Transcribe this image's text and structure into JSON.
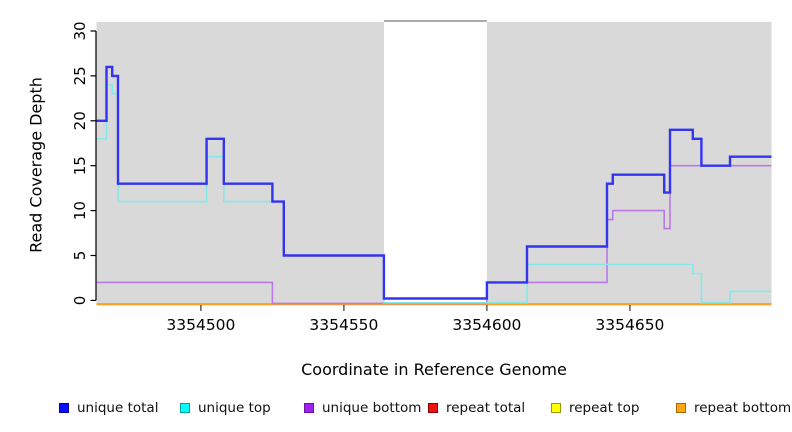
{
  "chart_data": {
    "type": "line",
    "subtype": "step-coverage-plot",
    "title": "",
    "xlabel": "Coordinate in Reference Genome",
    "ylabel": "Read Coverage Depth",
    "xlim": [
      3354463.5,
      3354699.5
    ],
    "ylim": [
      -0.4,
      31.0
    ],
    "xticks": [
      3354500,
      3354550,
      3354600,
      3354650
    ],
    "yticks": [
      0,
      5,
      10,
      15,
      20,
      25,
      30
    ],
    "grid": "off",
    "background": {
      "panel_color": "#d9d9d9",
      "gap_color": "#ffffff",
      "covered_regions": [
        [
          3354463.5,
          3354564
        ],
        [
          3354600,
          3354699.5
        ]
      ],
      "gap_region": [
        3354564,
        3354600
      ],
      "gap_top_line_color": "#8f8f8f"
    },
    "series": [
      {
        "name": "unique total",
        "color": "#3333f2",
        "line_width": 2.4,
        "steps": [
          [
            3354463.5,
            3354467,
            20
          ],
          [
            3354467,
            3354469,
            26
          ],
          [
            3354469,
            3354471,
            25
          ],
          [
            3354471,
            3354502,
            13
          ],
          [
            3354502,
            3354508,
            18
          ],
          [
            3354508,
            3354525,
            13
          ],
          [
            3354525,
            3354529,
            11
          ],
          [
            3354529,
            3354564,
            5
          ],
          [
            3354564,
            3354600,
            0
          ],
          [
            3354600,
            3354614,
            2
          ],
          [
            3354614,
            3354642,
            6
          ],
          [
            3354642,
            3354644,
            13
          ],
          [
            3354644,
            3354662,
            14
          ],
          [
            3354662,
            3354664,
            12
          ],
          [
            3354664,
            3354672,
            19
          ],
          [
            3354672,
            3354675,
            18
          ],
          [
            3354675,
            3354685,
            15
          ],
          [
            3354685,
            3354699.5,
            16
          ]
        ]
      },
      {
        "name": "unique top",
        "color": "#85e9ec",
        "line_width": 1.6,
        "steps": [
          [
            3354463.5,
            3354467,
            18
          ],
          [
            3354467,
            3354469,
            24
          ],
          [
            3354469,
            3354471,
            23
          ],
          [
            3354471,
            3354502,
            11
          ],
          [
            3354502,
            3354508,
            16
          ],
          [
            3354508,
            3354529,
            11
          ],
          [
            3354529,
            3354564,
            5
          ],
          [
            3354564,
            3354614,
            0
          ],
          [
            3354614,
            3354672,
            4
          ],
          [
            3354672,
            3354675,
            3
          ],
          [
            3354675,
            3354685,
            0
          ],
          [
            3354685,
            3354699.5,
            1
          ]
        ]
      },
      {
        "name": "unique bottom",
        "color": "#bb79e8",
        "line_width": 1.6,
        "steps": [
          [
            3354463.5,
            3354525,
            2
          ],
          [
            3354525,
            3354600,
            0
          ],
          [
            3354600,
            3354642,
            2
          ],
          [
            3354642,
            3354644,
            9
          ],
          [
            3354644,
            3354662,
            10
          ],
          [
            3354662,
            3354664,
            8
          ],
          [
            3354664,
            3354699.5,
            15
          ]
        ]
      },
      {
        "name": "repeat total",
        "color": "#e02020",
        "line_width": 1.6,
        "steps": [
          [
            3354463.5,
            3354699.5,
            0
          ]
        ]
      },
      {
        "name": "repeat top",
        "color": "#f2f226",
        "line_width": 1.6,
        "steps": [
          [
            3354463.5,
            3354699.5,
            0
          ]
        ]
      },
      {
        "name": "repeat bottom",
        "color": "#ff9d1e",
        "line_width": 2.0,
        "steps": [
          [
            3354463.5,
            3354699.5,
            0
          ]
        ]
      }
    ],
    "legend": {
      "position": "bottom",
      "items": [
        {
          "label": "unique total",
          "fill": "#0f0fff",
          "border": "#0000a0"
        },
        {
          "label": "unique top",
          "fill": "#00ffff",
          "border": "#009a9a"
        },
        {
          "label": "unique bottom",
          "fill": "#a020f0",
          "border": "#6a14a0"
        },
        {
          "label": "repeat total",
          "fill": "#ee1111",
          "border": "#8b0000"
        },
        {
          "label": "repeat top",
          "fill": "#ffff00",
          "border": "#9a9a00"
        },
        {
          "label": "repeat bottom",
          "fill": "#ffa512",
          "border": "#a06a00"
        }
      ]
    }
  }
}
